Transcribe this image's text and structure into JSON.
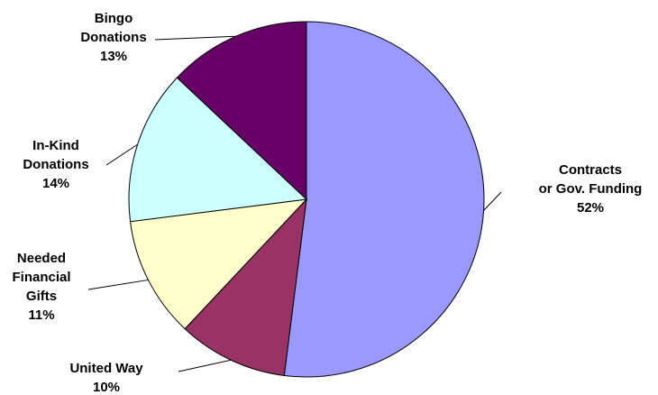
{
  "chart_data": {
    "type": "pie",
    "title": "",
    "slices": [
      {
        "label": [
          "Contracts",
          "or Gov. Funding"
        ],
        "pct": "52%",
        "value": 52,
        "color": "#9999ff"
      },
      {
        "label": [
          "United Way"
        ],
        "pct": "10%",
        "value": 10,
        "color": "#993366"
      },
      {
        "label": [
          "Needed",
          "Financial",
          "Gifts"
        ],
        "pct": "11%",
        "value": 11,
        "color": "#ffffcc"
      },
      {
        "label": [
          "In-Kind",
          "Donations"
        ],
        "pct": "14%",
        "value": 14,
        "color": "#ccffff"
      },
      {
        "label": [
          "Bingo",
          "Donations"
        ],
        "pct": "13%",
        "value": 13,
        "color": "#660066"
      }
    ],
    "legend": "none"
  }
}
